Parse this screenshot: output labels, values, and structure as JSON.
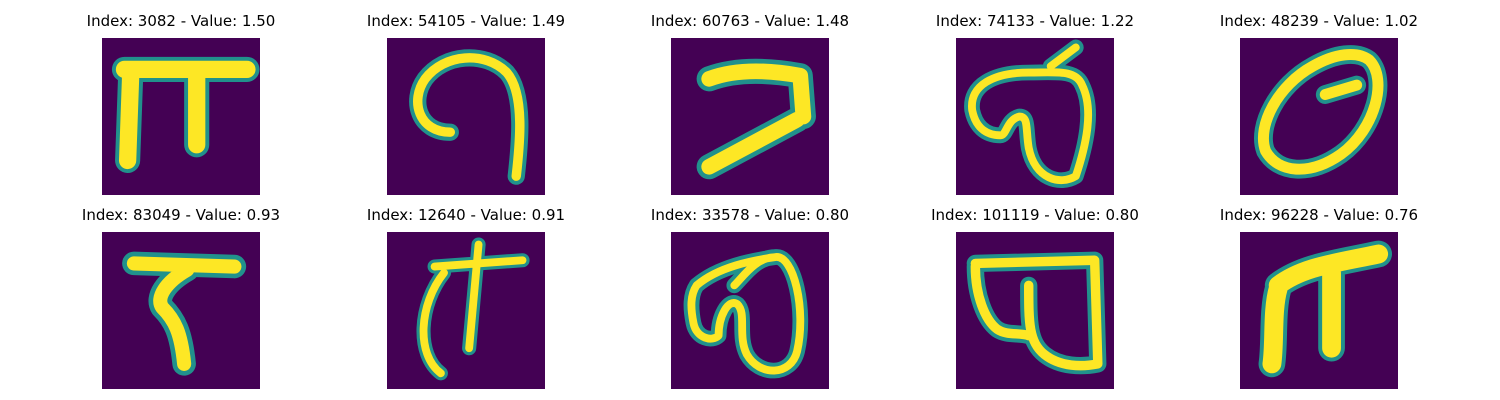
{
  "colors": {
    "background": "#440154",
    "mid": "#21918c",
    "stroke": "#fde725"
  },
  "panels": [
    {
      "title": "Index: 3082 - Value: 1.50",
      "glyph": "pi-block"
    },
    {
      "title": "Index: 54105 - Value: 1.49",
      "glyph": "hook-curve"
    },
    {
      "title": "Index: 60763 - Value: 1.48",
      "glyph": "z-shape"
    },
    {
      "title": "Index: 74133 - Value: 1.22",
      "glyph": "heart-loop"
    },
    {
      "title": "Index: 48239 - Value: 1.02",
      "glyph": "oval"
    },
    {
      "title": "Index: 83049 - Value: 0.93",
      "glyph": "tau"
    },
    {
      "title": "Index: 12640 - Value: 0.91",
      "glyph": "cross-curve"
    },
    {
      "title": "Index: 33578 - Value: 0.80",
      "glyph": "double-loop"
    },
    {
      "title": "Index: 101119 - Value: 0.80",
      "glyph": "box-loop"
    },
    {
      "title": "Index: 96228 - Value: 0.76",
      "glyph": "pi-curve"
    }
  ]
}
